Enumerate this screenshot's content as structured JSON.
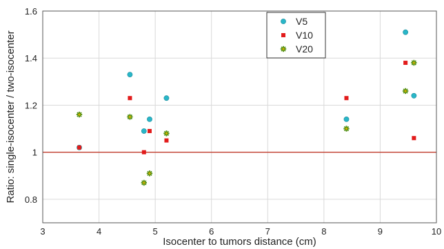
{
  "chart_data": {
    "type": "scatter",
    "xlabel": "Isocenter to tumors distance (cm)",
    "ylabel": "Ratio: single-isocenter / two-isocenter",
    "xlim": [
      3,
      10
    ],
    "ylim": [
      0.7,
      1.6
    ],
    "xticks": [
      3,
      4,
      5,
      6,
      7,
      8,
      9,
      10
    ],
    "yticks": [
      0.8,
      1,
      1.2,
      1.4,
      1.6
    ],
    "xtick_labels": [
      "3",
      "4",
      "5",
      "6",
      "7",
      "8",
      "9",
      "10"
    ],
    "ytick_labels": [
      "0.8",
      "1",
      "1.2",
      "1.4",
      "1.6"
    ],
    "grid": true,
    "legend_position": "top-right",
    "reference_line": {
      "y": 1.0,
      "color": "#c0392b"
    },
    "series": [
      {
        "name": "V5",
        "marker": "circle",
        "color": "#29b6c8",
        "points": [
          [
            3.65,
            1.02
          ],
          [
            4.55,
            1.33
          ],
          [
            4.8,
            1.09
          ],
          [
            4.9,
            1.14
          ],
          [
            5.2,
            1.23
          ],
          [
            8.4,
            1.14
          ],
          [
            9.45,
            1.51
          ],
          [
            9.6,
            1.24
          ]
        ]
      },
      {
        "name": "V10",
        "marker": "square",
        "color": "#e21b1b",
        "points": [
          [
            3.65,
            1.02
          ],
          [
            4.55,
            1.23
          ],
          [
            4.8,
            1.0
          ],
          [
            4.9,
            1.09
          ],
          [
            5.2,
            1.05
          ],
          [
            8.4,
            1.23
          ],
          [
            9.45,
            1.38
          ],
          [
            9.6,
            1.06
          ]
        ]
      },
      {
        "name": "V20",
        "marker": "star",
        "color": "#4d8c0a",
        "points": [
          [
            3.65,
            1.16
          ],
          [
            4.55,
            1.15
          ],
          [
            4.8,
            0.87
          ],
          [
            4.9,
            0.91
          ],
          [
            5.2,
            1.08
          ],
          [
            8.4,
            1.1
          ],
          [
            9.45,
            1.26
          ],
          [
            9.6,
            1.38
          ]
        ]
      }
    ]
  }
}
